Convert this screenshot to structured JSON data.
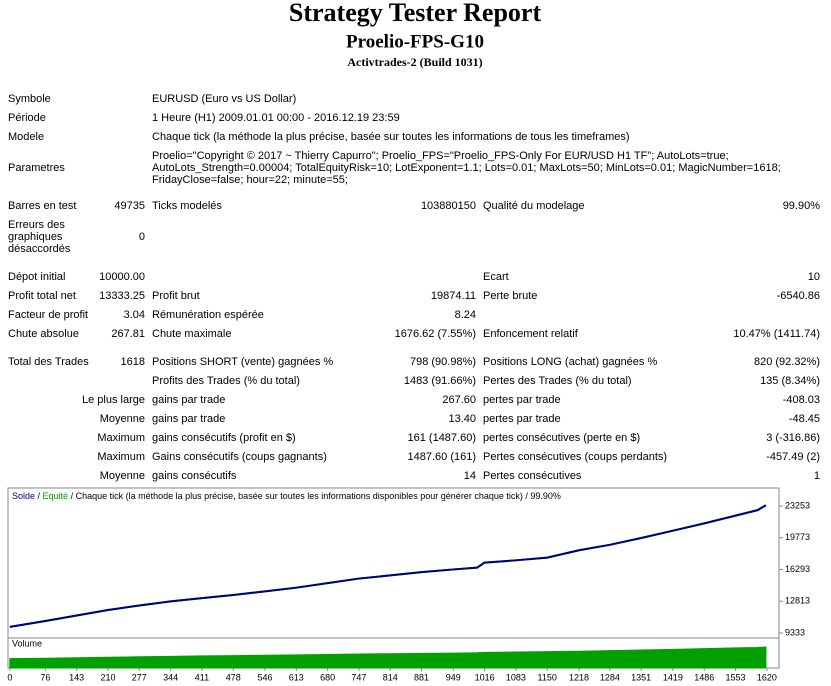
{
  "header": {
    "title": "Strategy Tester Report",
    "subtitle": "Proelio-FPS-G10",
    "server": "Activtrades-2 (Build 1031)"
  },
  "info": [
    {
      "label": "Symbole",
      "value": [
        "EURUSD (Euro vs US Dollar)"
      ]
    },
    {
      "label": "Période",
      "value": [
        "1 Heure (H1) 2009.01.01 00:00 - 2016.12.19 23:59"
      ]
    },
    {
      "label": "Modele",
      "value": [
        "Chaque tick (la méthode la plus précise, basée sur toutes les informations de tous les timeframes)"
      ]
    },
    {
      "label": "Parametres",
      "value": [
        "Proelio=\"Copyright © 2017 ~ Thierry Capurro\"; Proelio_FPS=\"Proelio_FPS-Only For EUR/USD H1 TF\"; AutoLots=true;",
        "AutoLots_Strength=0.00004; TotalEquityRisk=10; LotExponent=1.1; Lots=0.01; MaxLots=50; MinLots=0.01; MagicNumber=1618;",
        "FridayClose=false; hour=22; minute=55;"
      ]
    }
  ],
  "stats": [
    [
      [
        "Barres en test"
      ],
      "49735",
      "Ticks modelés",
      "103880150",
      "Qualité du modelage",
      "99.90%"
    ],
    [
      [
        "Erreurs des",
        "graphiques",
        "désaccordés"
      ],
      "0",
      null,
      null,
      null,
      null
    ],
    [
      [
        "Dépot initial"
      ],
      "10000.00",
      null,
      null,
      "Ecart",
      "10"
    ],
    [
      [
        "Profit total net"
      ],
      "13333.25",
      "Profit brut",
      "19874.11",
      "Perte brute",
      "-6540.86"
    ],
    [
      [
        "Facteur de profit"
      ],
      "3.04",
      "Rémunération espérée",
      "8.24",
      null,
      null
    ],
    [
      [
        "Chute absolue"
      ],
      "267.81",
      "Chute maximale",
      "1676.62 (7.55%)",
      "Enfoncement relatif",
      "10.47% (1411.74)"
    ],
    [
      [
        "Total des Trades"
      ],
      "1618",
      "Positions SHORT (vente) gagnées %",
      "798 (90.98%)",
      "Positions LONG (achat) gagnées %",
      "820 (92.32%)"
    ],
    [
      null,
      null,
      "Profits des Trades (% du total)",
      "1483 (91.66%)",
      "Pertes des Trades (% du total)",
      "135 (8.34%)"
    ],
    [
      [
        "Le plus large"
      ],
      null,
      "gains par trade",
      "267.60",
      "pertes par trade",
      "-408.03"
    ],
    [
      [
        "Moyenne"
      ],
      null,
      "gains par trade",
      "13.40",
      "pertes par trade",
      "-48.45"
    ],
    [
      [
        "Maximum"
      ],
      null,
      "gains consécutifs (profit en $)",
      "161 (1487.60)",
      "pertes consécutives (perte en $)",
      "3 (-316.86)"
    ],
    [
      [
        "Maximum"
      ],
      null,
      "Gains consécutifs (coups gagnants)",
      "1487.60 (161)",
      "Pertes consécutives (coups perdants)",
      "-457.49 (2)"
    ],
    [
      [
        "Moyenne"
      ],
      null,
      "gains consécutifs",
      "14",
      "Pertes consécutives",
      "1"
    ]
  ],
  "chart_data": {
    "type": "line",
    "legend_separator": " / ",
    "legend_note": "Chaque tick (la méthode la plus précise, basée sur toutes les informations disponibles pour générer chaque tick) / 99.90%",
    "x": [
      0,
      76,
      143,
      210,
      277,
      344,
      411,
      478,
      546,
      613,
      680,
      747,
      814,
      881,
      949,
      1000,
      1016,
      1083,
      1150,
      1218,
      1284,
      1351,
      1419,
      1486,
      1553,
      1600,
      1618
    ],
    "series": [
      {
        "name": "Equité",
        "color": "#00a000",
        "values": [
          10000,
          10650,
          11250,
          11850,
          12350,
          12800,
          13150,
          13500,
          13900,
          14300,
          14800,
          15300,
          15650,
          16000,
          16300,
          16500,
          17050,
          17300,
          17600,
          18400,
          19000,
          19750,
          20550,
          21350,
          22200,
          22800,
          23333
        ]
      },
      {
        "name": "Solde",
        "color": "#000080",
        "values": [
          10000,
          10650,
          11250,
          11850,
          12350,
          12800,
          13150,
          13500,
          13900,
          14300,
          14800,
          15300,
          15650,
          16000,
          16300,
          16500,
          17050,
          17300,
          17600,
          18400,
          19000,
          19750,
          20550,
          21350,
          22200,
          22800,
          23333
        ]
      }
    ],
    "xlim": [
      -4,
      1646
    ],
    "xticks": [
      0,
      76,
      143,
      210,
      277,
      344,
      411,
      478,
      546,
      613,
      680,
      747,
      814,
      881,
      949,
      1016,
      1083,
      1150,
      1218,
      1284,
      1351,
      1419,
      1486,
      1553,
      1620
    ],
    "ylim": [
      8785,
      25007
    ],
    "yticks": [
      9333,
      12813,
      16293,
      19773,
      23253
    ],
    "volume": {
      "label": "Volume",
      "color": "#00a000",
      "ylim": [
        0,
        0.3
      ],
      "values": [
        0.1,
        0.105,
        0.11,
        0.115,
        0.12,
        0.125,
        0.13,
        0.133,
        0.137,
        0.14,
        0.145,
        0.15,
        0.153,
        0.157,
        0.16,
        0.163,
        0.168,
        0.171,
        0.175,
        0.18,
        0.186,
        0.193,
        0.2,
        0.207,
        0.215,
        0.22,
        0.225
      ]
    }
  }
}
